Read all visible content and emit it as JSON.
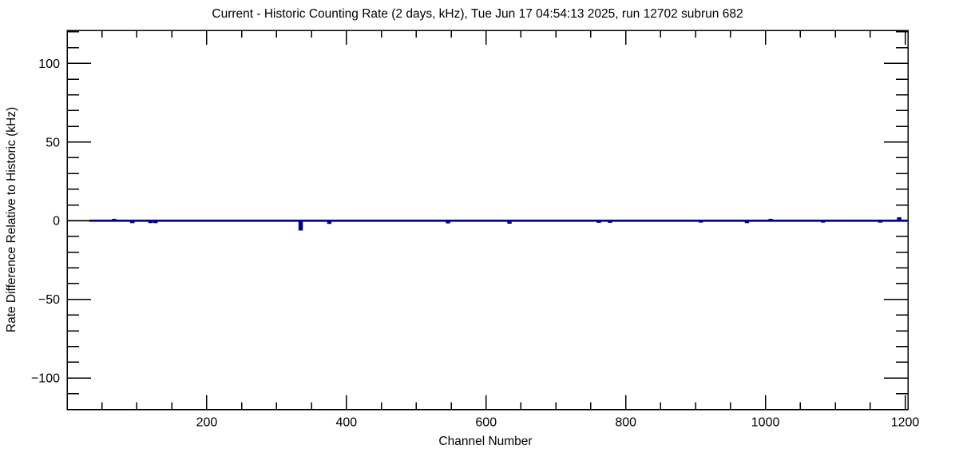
{
  "page": {
    "background": "#ffffff"
  },
  "chart_data": {
    "type": "line",
    "style": "root-histogram-step",
    "title": "Current - Historic Counting Rate (2 days, kHz), Tue Jun 17 04:54:13 2025, run 12702 subrun 682",
    "xlabel": "Channel Number",
    "ylabel": "Rate Difference Relative to Historic (kHz)",
    "xlim": [
      0,
      1204
    ],
    "ylim": [
      -120,
      121
    ],
    "x_major_ticks": [
      200,
      400,
      600,
      800,
      1000,
      1200
    ],
    "x_minor_tick_step": 50,
    "y_major_ticks": [
      -100,
      -50,
      0,
      50,
      100
    ],
    "y_minor_tick_step": 10,
    "grid": false,
    "legend": null,
    "frame_color": "#000000",
    "line_color": "#000099",
    "zero_line_color": "#000000",
    "baseline_value": 0,
    "hist_start_channel": 32,
    "hist_end_channel": 1204,
    "spike_bin_width_channels": 3,
    "spikes": [
      {
        "channel": 66,
        "value": 0.5
      },
      {
        "channel": 92,
        "value": -0.8
      },
      {
        "channel": 118,
        "value": -0.8
      },
      {
        "channel": 125,
        "value": -0.8
      },
      {
        "channel": 333,
        "value": -5.5
      },
      {
        "channel": 374,
        "value": -1.3
      },
      {
        "channel": 544,
        "value": -1.0
      },
      {
        "channel": 632,
        "value": -1.2
      },
      {
        "channel": 760,
        "value": -0.6
      },
      {
        "channel": 776,
        "value": -0.6
      },
      {
        "channel": 906,
        "value": -0.5
      },
      {
        "channel": 972,
        "value": -0.8
      },
      {
        "channel": 1006,
        "value": 0.5
      },
      {
        "channel": 1081,
        "value": -0.5
      },
      {
        "channel": 1163,
        "value": -0.5
      },
      {
        "channel": 1190,
        "value": 1.5
      }
    ]
  }
}
